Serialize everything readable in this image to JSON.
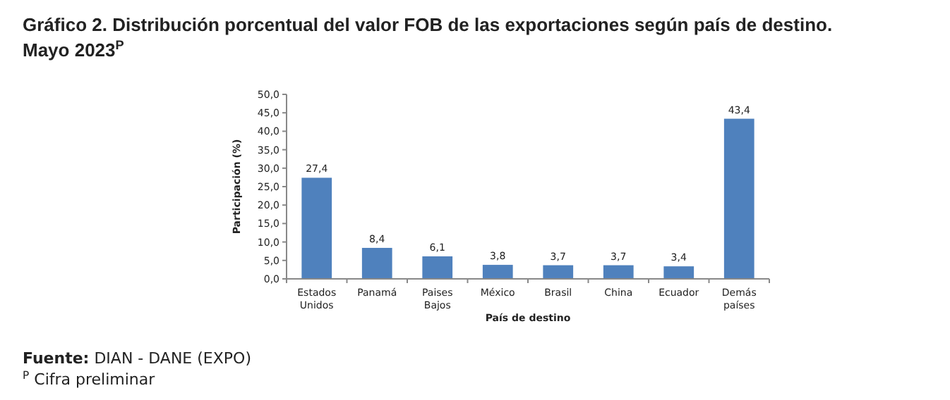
{
  "chart_data": {
    "type": "bar",
    "title": "Gráfico 2. Distribución porcentual del valor FOB de las exportaciones según país de destino.",
    "subtitle": "Mayo 2023$^{P}$",
    "xlabel": "País de destino",
    "ylabel": "Participación (%)",
    "annotations": [
      "Fuente: DIAN - DANE (EXPO)",
      "$^{P}$ Cifra preliminar"
    ],
    "categories": [
      "Estados Unidos",
      "Panamá",
      "Paises Bajos",
      "México",
      "Brasil",
      "China",
      "Ecuador",
      "Demás países"
    ],
    "values": [
      27.4,
      8.4,
      6.1,
      3.8,
      3.7,
      3.7,
      3.4,
      43.4
    ],
    "value_labels": [
      "27,4",
      "8,4",
      "6,1",
      "3,8",
      "3,7",
      "3,7",
      "3,4",
      "43,4"
    ],
    "color": "#4f81bd",
    "ylim": [
      0,
      50
    ],
    "yticks": [
      {
        "value": 0,
        "label": "0,0"
      },
      {
        "value": 5,
        "label": "5,0"
      },
      {
        "value": 10,
        "label": "10,0"
      },
      {
        "value": 15,
        "label": "15,0"
      },
      {
        "value": 20,
        "label": "20,0"
      },
      {
        "value": 25,
        "label": "25,0"
      },
      {
        "value": 30,
        "label": "30,0"
      },
      {
        "value": 35,
        "label": "35,0"
      },
      {
        "value": 40,
        "label": "40,0"
      },
      {
        "value": 45,
        "label": "45,0"
      },
      {
        "value": 50,
        "label": "50,0"
      }
    ],
    "grid": false
  }
}
